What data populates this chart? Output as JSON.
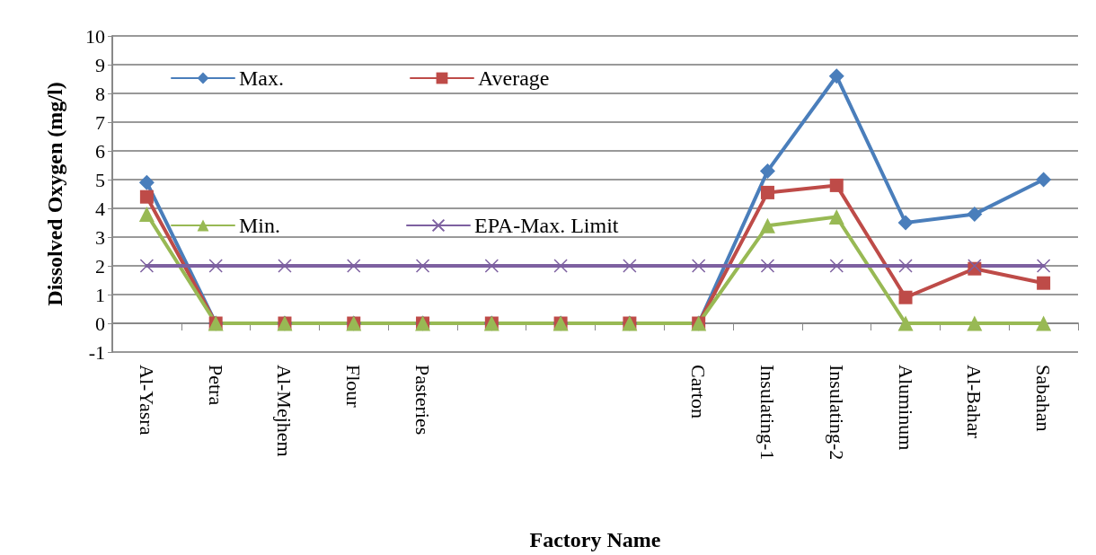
{
  "chart_data": {
    "type": "line",
    "xlabel": "Factory Name",
    "ylabel": "Dissolved Oxygen (mg/l)",
    "categories": [
      "Al-Yasra",
      "Petra",
      "Al-Mejhem",
      "Flour",
      "Pasteries",
      null,
      null,
      null,
      "Carton",
      "Insulating-1",
      "Insulating-2",
      "Aluminum",
      "Al-Bahar",
      "Sabahan"
    ],
    "series": [
      {
        "name": "Max.",
        "color": "#4a7ebb",
        "marker": "diamond",
        "values": [
          4.9,
          0,
          0,
          0,
          0,
          0,
          0,
          0,
          0,
          5.3,
          8.6,
          3.5,
          3.8,
          5.0
        ]
      },
      {
        "name": "Average",
        "color": "#be4b48",
        "marker": "square",
        "values": [
          4.4,
          0,
          0,
          0,
          0,
          0,
          0,
          0,
          0,
          4.55,
          4.8,
          0.9,
          1.9,
          1.4
        ]
      },
      {
        "name": "Min.",
        "color": "#98b954",
        "marker": "triangle",
        "values": [
          3.8,
          0,
          0,
          0,
          0,
          0,
          0,
          0,
          0,
          3.4,
          3.7,
          0,
          0,
          0
        ]
      },
      {
        "name": "EPA-Max. Limit",
        "color": "#7d60a0",
        "marker": "cross",
        "values": [
          2,
          2,
          2,
          2,
          2,
          2,
          2,
          2,
          2,
          2,
          2,
          2,
          2,
          2
        ]
      }
    ],
    "ylim": [
      -1,
      10
    ],
    "yticks": [
      -1,
      0,
      1,
      2,
      3,
      4,
      5,
      6,
      7,
      8,
      9,
      10
    ],
    "grid": "y",
    "legend": "top left",
    "line_style": "solid"
  }
}
